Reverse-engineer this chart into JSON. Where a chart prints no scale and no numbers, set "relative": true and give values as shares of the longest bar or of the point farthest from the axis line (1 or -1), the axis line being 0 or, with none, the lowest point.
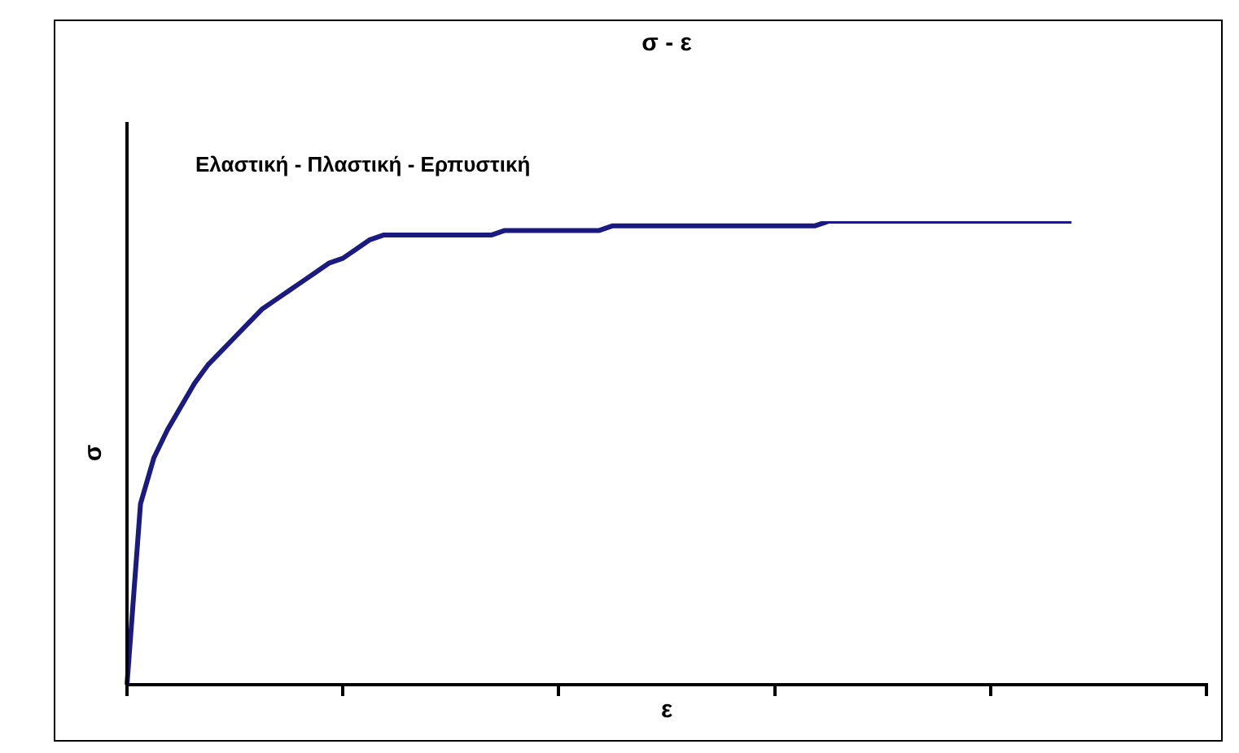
{
  "chart_data": {
    "type": "line",
    "title": "σ - ε",
    "xlabel": "ε",
    "ylabel": "σ",
    "annotations": [
      "Ελαστική - Πλαστική - Ερπυστική"
    ],
    "relative": true,
    "legend": false,
    "grid": false,
    "marker": "none",
    "line_style": "solid",
    "tick_labels": false,
    "categories": [
      null,
      null,
      null,
      null,
      null,
      null,
      null,
      null,
      null,
      null,
      null,
      null,
      null,
      null,
      null,
      null,
      null,
      null,
      null,
      null,
      null,
      null,
      null,
      null,
      null,
      null,
      null,
      null,
      null,
      null,
      null,
      null,
      null,
      null,
      null,
      null,
      null,
      null,
      null,
      null,
      null,
      null,
      null,
      null,
      null,
      null,
      null,
      null,
      null,
      null,
      null,
      null,
      null,
      null,
      null,
      null,
      null,
      null,
      null,
      null,
      null,
      null,
      null,
      null,
      null,
      null,
      null,
      null,
      null,
      null,
      null,
      null,
      null,
      null,
      null,
      null,
      null,
      null,
      null,
      null,
      null
    ],
    "series": [
      {
        "color": "#1a1a80",
        "values": [
          0,
          0.39,
          0.49,
          0.55,
          0.6,
          0.65,
          0.69,
          0.72,
          0.75,
          0.78,
          0.81,
          0.83,
          0.85,
          0.87,
          0.89,
          0.91,
          0.92,
          0.94,
          0.96,
          0.97,
          0.97,
          0.97,
          0.97,
          0.97,
          0.97,
          0.97,
          0.97,
          0.97,
          0.98,
          0.98,
          0.98,
          0.98,
          0.98,
          0.98,
          0.98,
          0.98,
          0.99,
          0.99,
          0.99,
          0.99,
          0.99,
          0.99,
          0.99,
          0.99,
          0.99,
          0.99,
          0.99,
          0.99,
          0.99,
          0.99,
          0.99,
          0.99,
          1,
          1,
          1,
          1,
          1,
          1,
          1,
          1,
          1,
          1,
          1,
          1,
          1,
          1,
          1,
          1,
          1,
          1,
          1,
          null,
          null,
          null,
          null,
          null,
          null,
          null,
          null,
          null,
          null
        ]
      }
    ]
  }
}
